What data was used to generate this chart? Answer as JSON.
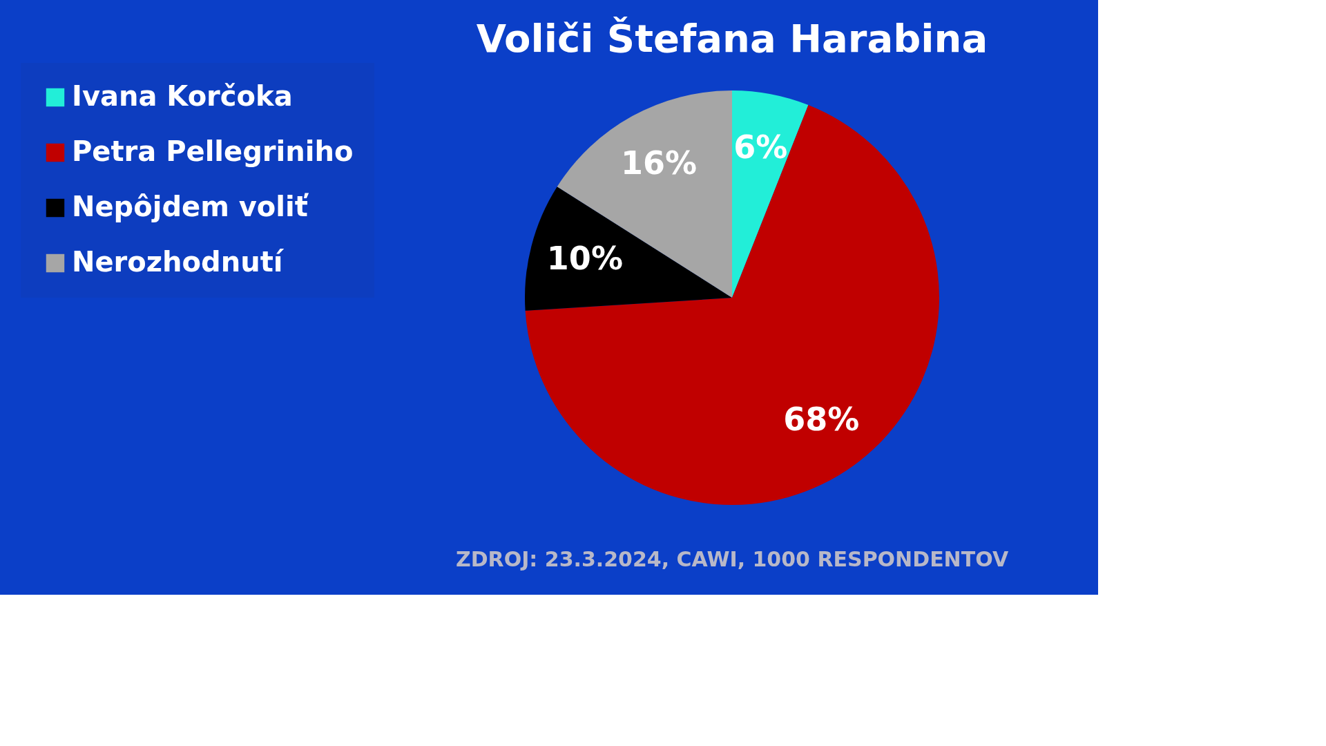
{
  "chart_data": {
    "type": "pie",
    "title": "Voliči Štefana Harabina",
    "categories": [
      "Ivana Korčoka",
      "Petra Pellegriniho",
      "Nepôjdem voliť",
      "Nerozhodnutí"
    ],
    "values": [
      6,
      68,
      10,
      16
    ],
    "colors": [
      "#22eed8",
      "#c00000",
      "#000000",
      "#a6a6a6"
    ],
    "value_labels": [
      "6%",
      "68%",
      "10%",
      "16%"
    ],
    "legend": "left",
    "annotations": [
      "ZDROJ:   23.3.2024,  CAWI,  1000 RESPONDENTOV"
    ]
  }
}
